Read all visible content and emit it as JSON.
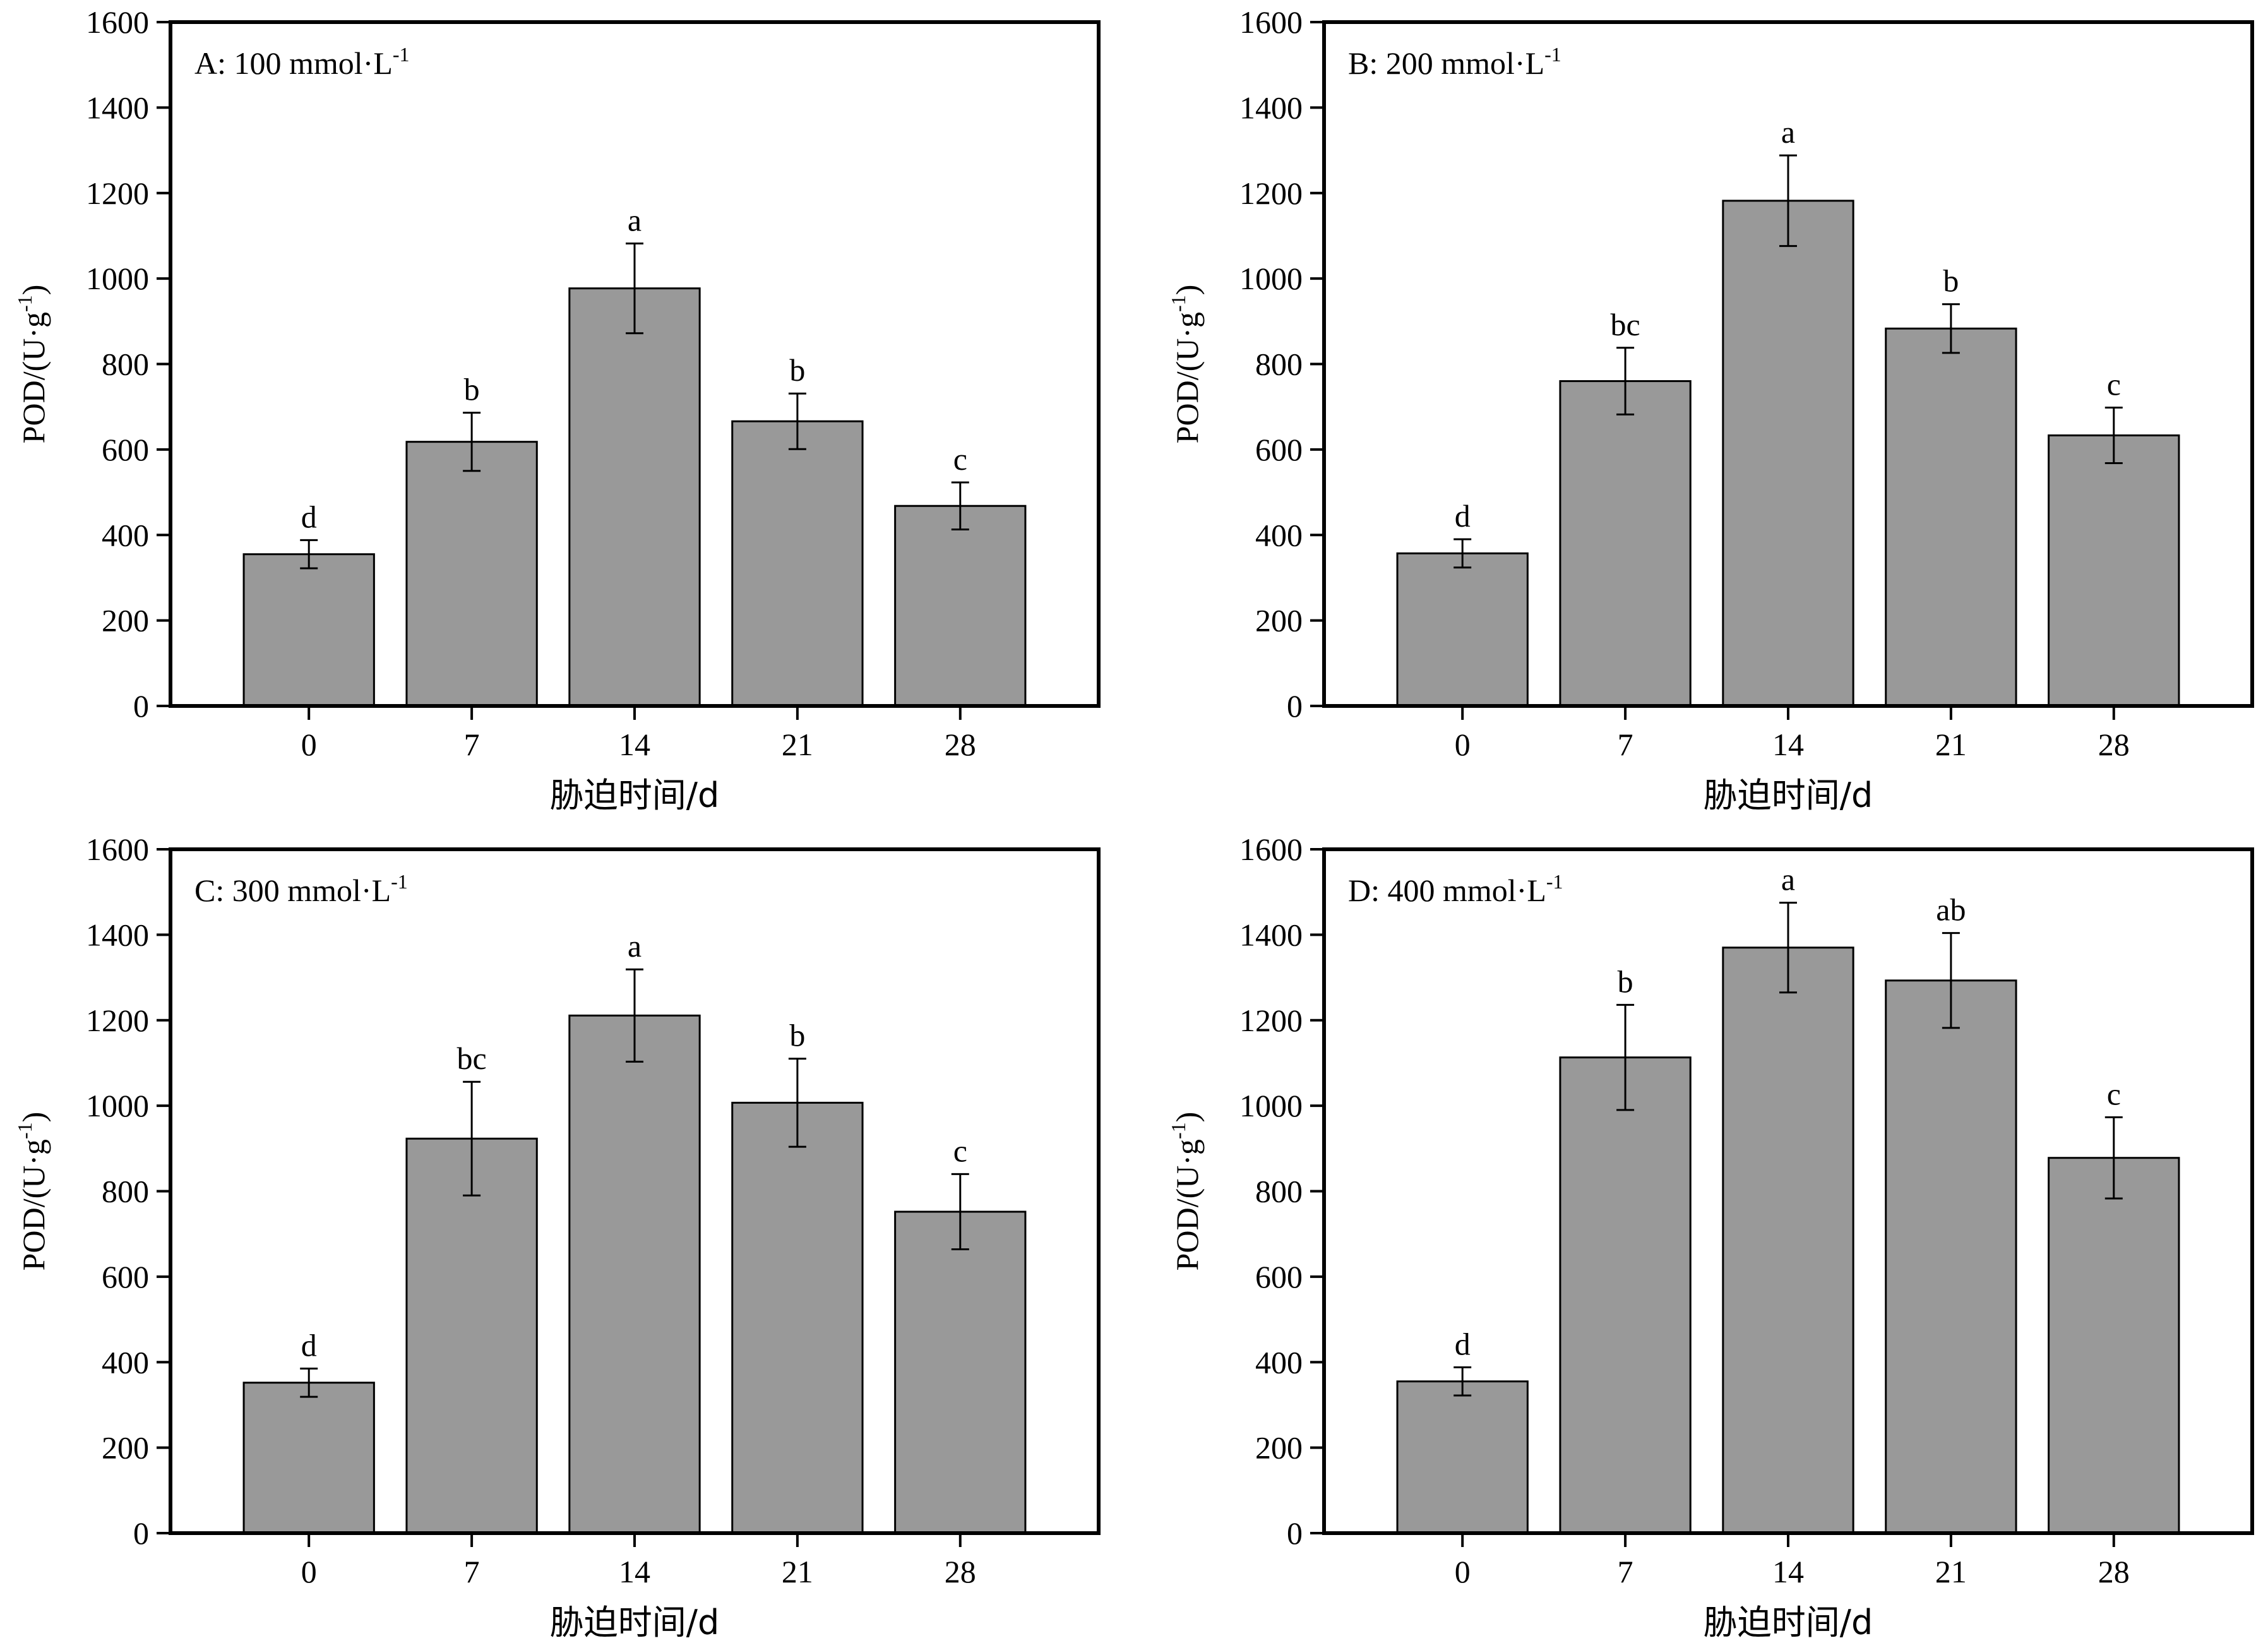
{
  "figure": {
    "background": "#ffffff",
    "bar_color": "#999999",
    "edge_color": "#000000"
  },
  "chart_data": [
    {
      "type": "bar",
      "panel": "A",
      "title": "A: 100 mmol·L",
      "title_sup": "-1",
      "categories": [
        "0",
        "7",
        "14",
        "21",
        "28"
      ],
      "values": [
        355,
        618,
        977,
        666,
        468
      ],
      "errors": [
        33,
        68,
        105,
        65,
        55
      ],
      "letters": [
        "d",
        "b",
        "a",
        "b",
        "c"
      ],
      "xlabel": "胁迫时间/d",
      "ylabel": "POD/(U·g",
      "ylabel_sup": "-1",
      "ylabel_close": ")",
      "ylim": [
        0,
        1600
      ],
      "yticks": [
        0,
        200,
        400,
        600,
        800,
        1000,
        1200,
        1400,
        1600
      ],
      "grid": false,
      "legend": "none"
    },
    {
      "type": "bar",
      "panel": "B",
      "title": "B: 200 mmol·L",
      "title_sup": "-1",
      "categories": [
        "0",
        "7",
        "14",
        "21",
        "28"
      ],
      "values": [
        357,
        760,
        1182,
        883,
        633
      ],
      "errors": [
        33,
        78,
        106,
        57,
        65
      ],
      "letters": [
        "d",
        "bc",
        "a",
        "b",
        "c"
      ],
      "xlabel": "胁迫时间/d",
      "ylabel": "POD/(U·g",
      "ylabel_sup": "-1",
      "ylabel_close": ")",
      "ylim": [
        0,
        1600
      ],
      "yticks": [
        0,
        200,
        400,
        600,
        800,
        1000,
        1200,
        1400,
        1600
      ],
      "grid": false,
      "legend": "none"
    },
    {
      "type": "bar",
      "panel": "C",
      "title": "C: 300 mmol·L",
      "title_sup": "-1",
      "categories": [
        "0",
        "7",
        "14",
        "21",
        "28"
      ],
      "values": [
        352,
        923,
        1211,
        1007,
        752
      ],
      "errors": [
        33,
        133,
        108,
        103,
        88
      ],
      "letters": [
        "d",
        "bc",
        "a",
        "b",
        "c"
      ],
      "xlabel": "胁迫时间/d",
      "ylabel": "POD/(U·g",
      "ylabel_sup": "-1",
      "ylabel_close": ")",
      "ylim": [
        0,
        1600
      ],
      "yticks": [
        0,
        200,
        400,
        600,
        800,
        1000,
        1200,
        1400,
        1600
      ],
      "grid": false,
      "legend": "none"
    },
    {
      "type": "bar",
      "panel": "D",
      "title": "D: 400 mmol·L",
      "title_sup": "-1",
      "categories": [
        "0",
        "7",
        "14",
        "21",
        "28"
      ],
      "values": [
        355,
        1113,
        1370,
        1293,
        878
      ],
      "errors": [
        33,
        123,
        105,
        111,
        95
      ],
      "letters": [
        "d",
        "b",
        "a",
        "ab",
        "c"
      ],
      "xlabel": "胁迫时间/d",
      "ylabel": "POD/(U·g",
      "ylabel_sup": "-1",
      "ylabel_close": ")",
      "ylim": [
        0,
        1600
      ],
      "yticks": [
        0,
        200,
        400,
        600,
        800,
        1000,
        1200,
        1400,
        1600
      ],
      "grid": false,
      "legend": "none"
    }
  ]
}
